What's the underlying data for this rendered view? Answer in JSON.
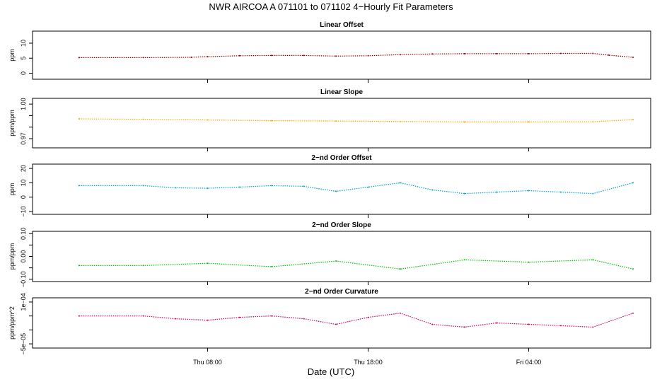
{
  "figure": {
    "title": "NWR   AIRCOA A   071101 to 071102   4−Hourly Fit Parameters",
    "xlabel": "Date (UTC)"
  },
  "chart_data": [
    {
      "type": "line",
      "title": "Linear Offset",
      "ylabel": "ppm",
      "ylim": [
        -2,
        14
      ],
      "yticks": [
        0,
        5,
        10
      ],
      "ytick_labels": [
        "0",
        "5",
        "10"
      ],
      "color": "#8b0000",
      "xlim": [
        -2.9,
        35.6
      ],
      "x": [
        0,
        4,
        7,
        8,
        10,
        12,
        14,
        16,
        18,
        20,
        22,
        24,
        26,
        28,
        30,
        32,
        33,
        34.5
      ],
      "values": [
        5.2,
        5.2,
        5.3,
        5.5,
        5.8,
        5.9,
        5.9,
        5.7,
        5.8,
        6.2,
        6.4,
        6.5,
        6.5,
        6.5,
        6.6,
        6.6,
        6.0,
        5.3
      ],
      "xticks": [
        8,
        18,
        28
      ],
      "xtick_labels": [
        "",
        "",
        ""
      ]
    },
    {
      "type": "line",
      "title": "Linear Slope",
      "ylabel": "ppm/ppm",
      "ylim": [
        0.962,
        1.005
      ],
      "yticks": [
        0.97,
        0.98,
        0.99,
        1.0
      ],
      "ytick_labels": [
        "0.97",
        "",
        "",
        "1.00"
      ],
      "color": "#ffa500",
      "xlim": [
        -2.9,
        35.6
      ],
      "x": [
        0,
        4,
        8,
        12,
        16,
        20,
        24,
        28,
        32,
        34.5
      ],
      "values": [
        0.9872,
        0.9868,
        0.9862,
        0.9856,
        0.9853,
        0.9849,
        0.9845,
        0.9845,
        0.9846,
        0.9865
      ],
      "xticks": [
        8,
        18,
        28
      ],
      "xtick_labels": [
        "",
        "",
        ""
      ]
    },
    {
      "type": "line",
      "title": "2−nd Order Offset",
      "ylabel": "ppm",
      "ylim": [
        -12,
        23
      ],
      "yticks": [
        -10,
        0,
        10,
        20
      ],
      "ytick_labels": [
        "−10",
        "0",
        "10",
        "20"
      ],
      "color": "#00a0d0",
      "xlim": [
        -2.9,
        35.6
      ],
      "x": [
        0,
        4,
        6,
        8,
        10,
        12,
        14,
        16,
        18,
        20,
        22,
        24,
        26,
        28,
        30,
        32,
        34.5
      ],
      "values": [
        8.0,
        8.0,
        6.5,
        6.2,
        7.0,
        8.0,
        7.5,
        4.0,
        7.0,
        10.0,
        5.0,
        2.5,
        3.5,
        4.5,
        3.5,
        2.5,
        10.0
      ],
      "xticks": [
        8,
        18,
        28
      ],
      "xtick_labels": [
        "",
        "",
        ""
      ]
    },
    {
      "type": "line",
      "title": "2−nd Order Slope",
      "ylabel": "ppm/ppm",
      "ylim": [
        -0.11,
        0.11
      ],
      "yticks": [
        -0.1,
        -0.05,
        0.0,
        0.05,
        0.1
      ],
      "ytick_labels": [
        "−0.10",
        "",
        "0.00",
        "",
        "0.10"
      ],
      "color": "#00c000",
      "xlim": [
        -2.9,
        35.6
      ],
      "x": [
        0,
        4,
        8,
        12,
        16,
        20,
        24,
        28,
        32,
        34.5
      ],
      "values": [
        -0.04,
        -0.04,
        -0.03,
        -0.045,
        -0.02,
        -0.055,
        -0.015,
        -0.025,
        -0.015,
        -0.055
      ],
      "xticks": [
        8,
        18,
        28
      ],
      "xtick_labels": [
        "",
        "",
        ""
      ]
    },
    {
      "type": "line",
      "title": "2−nd Order Curvature",
      "ylabel": "ppm/ppm^2",
      "ylim": [
        -6.5e-05,
        0.000115
      ],
      "yticks": [
        -5e-05,
        0,
        5e-05,
        0.0001
      ],
      "ytick_labels": [
        "−5e−05",
        "",
        "",
        "1e−04"
      ],
      "color": "#cc0066",
      "xlim": [
        -2.9,
        35.6
      ],
      "x": [
        0,
        4,
        6,
        8,
        10,
        12,
        14,
        16,
        18,
        20,
        22,
        24,
        26,
        28,
        30,
        32,
        34.5
      ],
      "values": [
        5e-05,
        5e-05,
        4e-05,
        3.5e-05,
        4.5e-05,
        5e-05,
        4e-05,
        2e-05,
        4.5e-05,
        6e-05,
        2e-05,
        1e-05,
        2.5e-05,
        2e-05,
        1.5e-05,
        1e-05,
        6e-05
      ],
      "xticks": [
        8,
        18,
        28
      ],
      "xtick_labels": [
        "Thu 08:00",
        "Thu 18:00",
        "Fri 04:00"
      ]
    }
  ]
}
